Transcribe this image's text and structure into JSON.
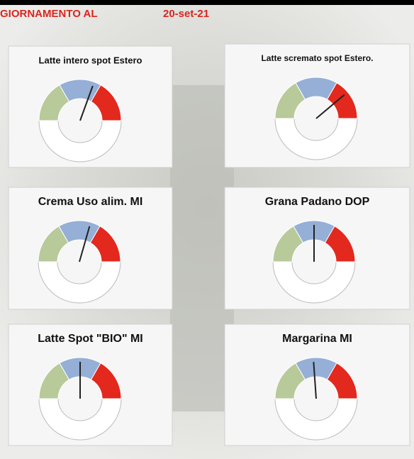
{
  "header": {
    "label": "GIORNAMENTO AL",
    "date": "20-set-21"
  },
  "panels": [
    {
      "title": "Latte intero spot Estero"
    },
    {
      "title": "Latte scremato spot Estero."
    },
    {
      "title": "Crema Uso alim. MI"
    },
    {
      "title": "Grana Padano DOP"
    },
    {
      "title": "Latte Spot \"BIO\" MI"
    },
    {
      "title": "Margarina MI"
    }
  ]
}
